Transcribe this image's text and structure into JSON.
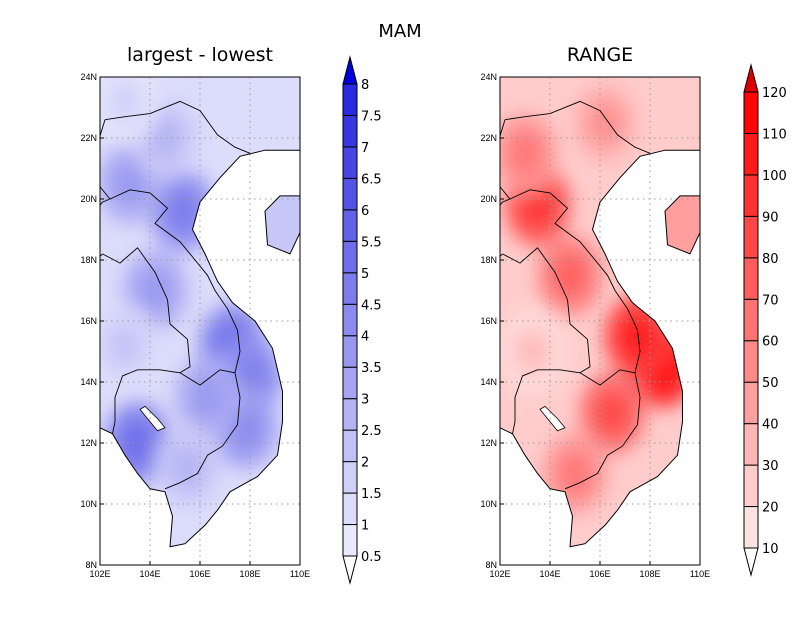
{
  "figure": {
    "season_title": "MAM"
  },
  "map_extent": {
    "lon": [
      102,
      110
    ],
    "lat": [
      8,
      24
    ]
  },
  "panels": [
    {
      "id": "left",
      "title": "largest - lowest",
      "colormap": "blue",
      "ticks_x": [
        "102E",
        "104E",
        "106E",
        "108E",
        "110E"
      ],
      "ticks_y": [
        "24N",
        "22N",
        "20N",
        "18N",
        "16N",
        "14N",
        "12N",
        "10N",
        "8N"
      ],
      "colorbar": {
        "labels": [
          "0.5",
          "1",
          "1.5",
          "2",
          "2.5",
          "3",
          "3.5",
          "4",
          "4.5",
          "5",
          "5.5",
          "6",
          "6.5",
          "7",
          "7.5",
          "8"
        ],
        "bin_colors": [
          "#ffffff",
          "#eaeafd",
          "#dcdcfb",
          "#cfcff9",
          "#c1c1f7",
          "#b3b3f5",
          "#a5a5f3",
          "#9898f1",
          "#8a8aef",
          "#7c7ced",
          "#6f6feb",
          "#6161e9",
          "#5353e7",
          "#4646e5",
          "#3838e3",
          "#2a2ae1",
          "#0000dd"
        ]
      },
      "hotspots": [
        {
          "lon": 103.5,
          "lat": 12.0,
          "level": 10
        },
        {
          "lon": 107.3,
          "lat": 15.2,
          "level": 10
        },
        {
          "lon": 108.0,
          "lat": 14.2,
          "level": 9
        },
        {
          "lon": 107.8,
          "lat": 12.5,
          "level": 8
        },
        {
          "lon": 105.3,
          "lat": 19.6,
          "level": 9
        },
        {
          "lon": 104.2,
          "lat": 17.0,
          "level": 7
        },
        {
          "lon": 103.2,
          "lat": 20.5,
          "level": 7
        },
        {
          "lon": 106.3,
          "lat": 13.5,
          "level": 7
        },
        {
          "lon": 104.6,
          "lat": 22.0,
          "level": 5
        },
        {
          "lon": 103.0,
          "lat": 15.2,
          "level": 4
        },
        {
          "lon": 105.5,
          "lat": 11.2,
          "level": 5
        },
        {
          "lon": 103.0,
          "lat": 23.2,
          "level": 3
        }
      ]
    },
    {
      "id": "right",
      "title": "RANGE",
      "colormap": "red",
      "ticks_x": [
        "102E",
        "104E",
        "106E",
        "108E",
        "110E"
      ],
      "ticks_y": [
        "24N",
        "22N",
        "20N",
        "18N",
        "16N",
        "14N",
        "12N",
        "10N",
        "8N"
      ],
      "colorbar": {
        "labels": [
          "10",
          "20",
          "30",
          "40",
          "50",
          "60",
          "70",
          "80",
          "90",
          "100",
          "110",
          "120"
        ],
        "bin_colors": [
          "#ffffff",
          "#ffe2e2",
          "#ffcccc",
          "#ffb6b6",
          "#ffa0a0",
          "#ff8a8a",
          "#ff7373",
          "#ff5d5d",
          "#ff4747",
          "#ff3131",
          "#ff1b1b",
          "#ff0505",
          "#dd0000"
        ]
      },
      "hotspots": [
        {
          "lon": 108.5,
          "lat": 14.5,
          "level": 11
        },
        {
          "lon": 107.5,
          "lat": 15.5,
          "level": 10
        },
        {
          "lon": 103.5,
          "lat": 19.8,
          "level": 9
        },
        {
          "lon": 106.5,
          "lat": 13.0,
          "level": 8
        },
        {
          "lon": 104.8,
          "lat": 17.5,
          "level": 7
        },
        {
          "lon": 103.0,
          "lat": 21.5,
          "level": 6
        },
        {
          "lon": 105.0,
          "lat": 11.0,
          "level": 6
        },
        {
          "lon": 106.2,
          "lat": 22.5,
          "level": 5
        },
        {
          "lon": 109.3,
          "lat": 19.3,
          "level": 6
        },
        {
          "lon": 103.3,
          "lat": 15.0,
          "level": 3
        }
      ]
    }
  ]
}
